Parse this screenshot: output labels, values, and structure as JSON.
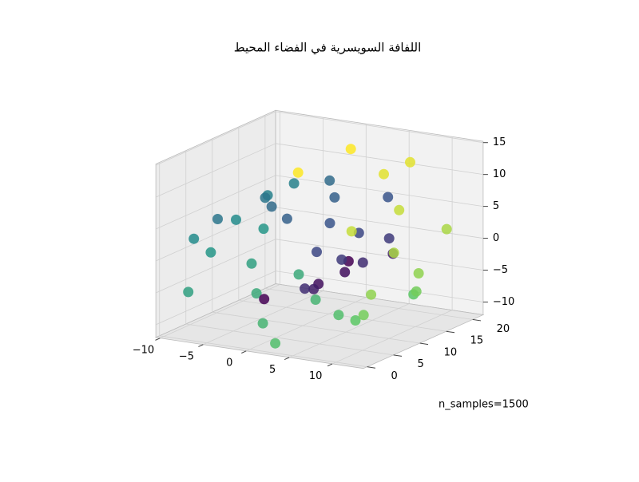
{
  "chart_data": {
    "type": "scatter3d",
    "title": "اللفافة السويسرية في الفضاء المحيط",
    "annotation": "n_samples=1500",
    "colormap": "viridis",
    "x": [
      0.42,
      0.42,
      2.44,
      2.44,
      4.34,
      4.34,
      5.76,
      5.76,
      6.36,
      6.36,
      5.91,
      5.91,
      4.38,
      4.38,
      1.86,
      1.86,
      -1.16,
      -1.16,
      -4.36,
      -4.36,
      -7.14,
      -7.14,
      -8.97,
      -8.97,
      -9.45,
      -9.45,
      -8.39,
      -8.39,
      -5.98,
      -5.98,
      -2.18,
      -2.18,
      2.33,
      2.33,
      6.74,
      6.74,
      10.13,
      10.13,
      12.23,
      12.23,
      12.43,
      12.43,
      10.58,
      10.58,
      6.96,
      6.96,
      1.91,
      1.91
    ],
    "y": [
      2,
      18,
      9,
      14,
      5,
      20,
      12,
      1,
      16,
      7,
      3,
      11,
      19,
      8,
      13,
      4,
      6,
      17,
      10,
      1,
      15,
      20,
      4,
      12,
      8,
      18,
      2,
      14,
      11,
      19,
      6,
      16,
      1,
      13,
      9,
      20,
      5,
      15,
      12,
      3,
      17,
      7,
      2,
      11,
      14,
      19,
      6,
      16
    ],
    "z": [
      -4.78,
      -4.78,
      -4.59,
      -4.59,
      -3.54,
      -3.54,
      -1.68,
      -1.68,
      0.75,
      0.75,
      3.36,
      3.36,
      5.71,
      5.71,
      7.37,
      7.37,
      7.92,
      7.92,
      7.18,
      7.18,
      5.15,
      5.15,
      2.05,
      2.05,
      -1.67,
      -1.67,
      -5.44,
      -5.44,
      -8.51,
      -8.51,
      -10.58,
      -10.58,
      -10.96,
      -10.96,
      -9.44,
      -9.44,
      -6.44,
      -6.44,
      -2.07,
      -2.07,
      3.05,
      3.05,
      7.89,
      7.89,
      11.69,
      11.69,
      13.87,
      13.87
    ],
    "xlim": [
      -10.5,
      13.6
    ],
    "ylim": [
      -0.7,
      22
    ],
    "zlim": [
      -12,
      15.2
    ],
    "xticks": [
      {
        "value": -10,
        "label": "−10"
      },
      {
        "value": -5,
        "label": "−5"
      },
      0,
      5,
      10
    ],
    "yticks": [
      0,
      5,
      10,
      15,
      20
    ],
    "zticks": [
      {
        "value": -10,
        "label": "−10"
      },
      {
        "value": -5,
        "label": "−5"
      },
      0,
      5,
      10,
      15
    ],
    "grid": true
  }
}
